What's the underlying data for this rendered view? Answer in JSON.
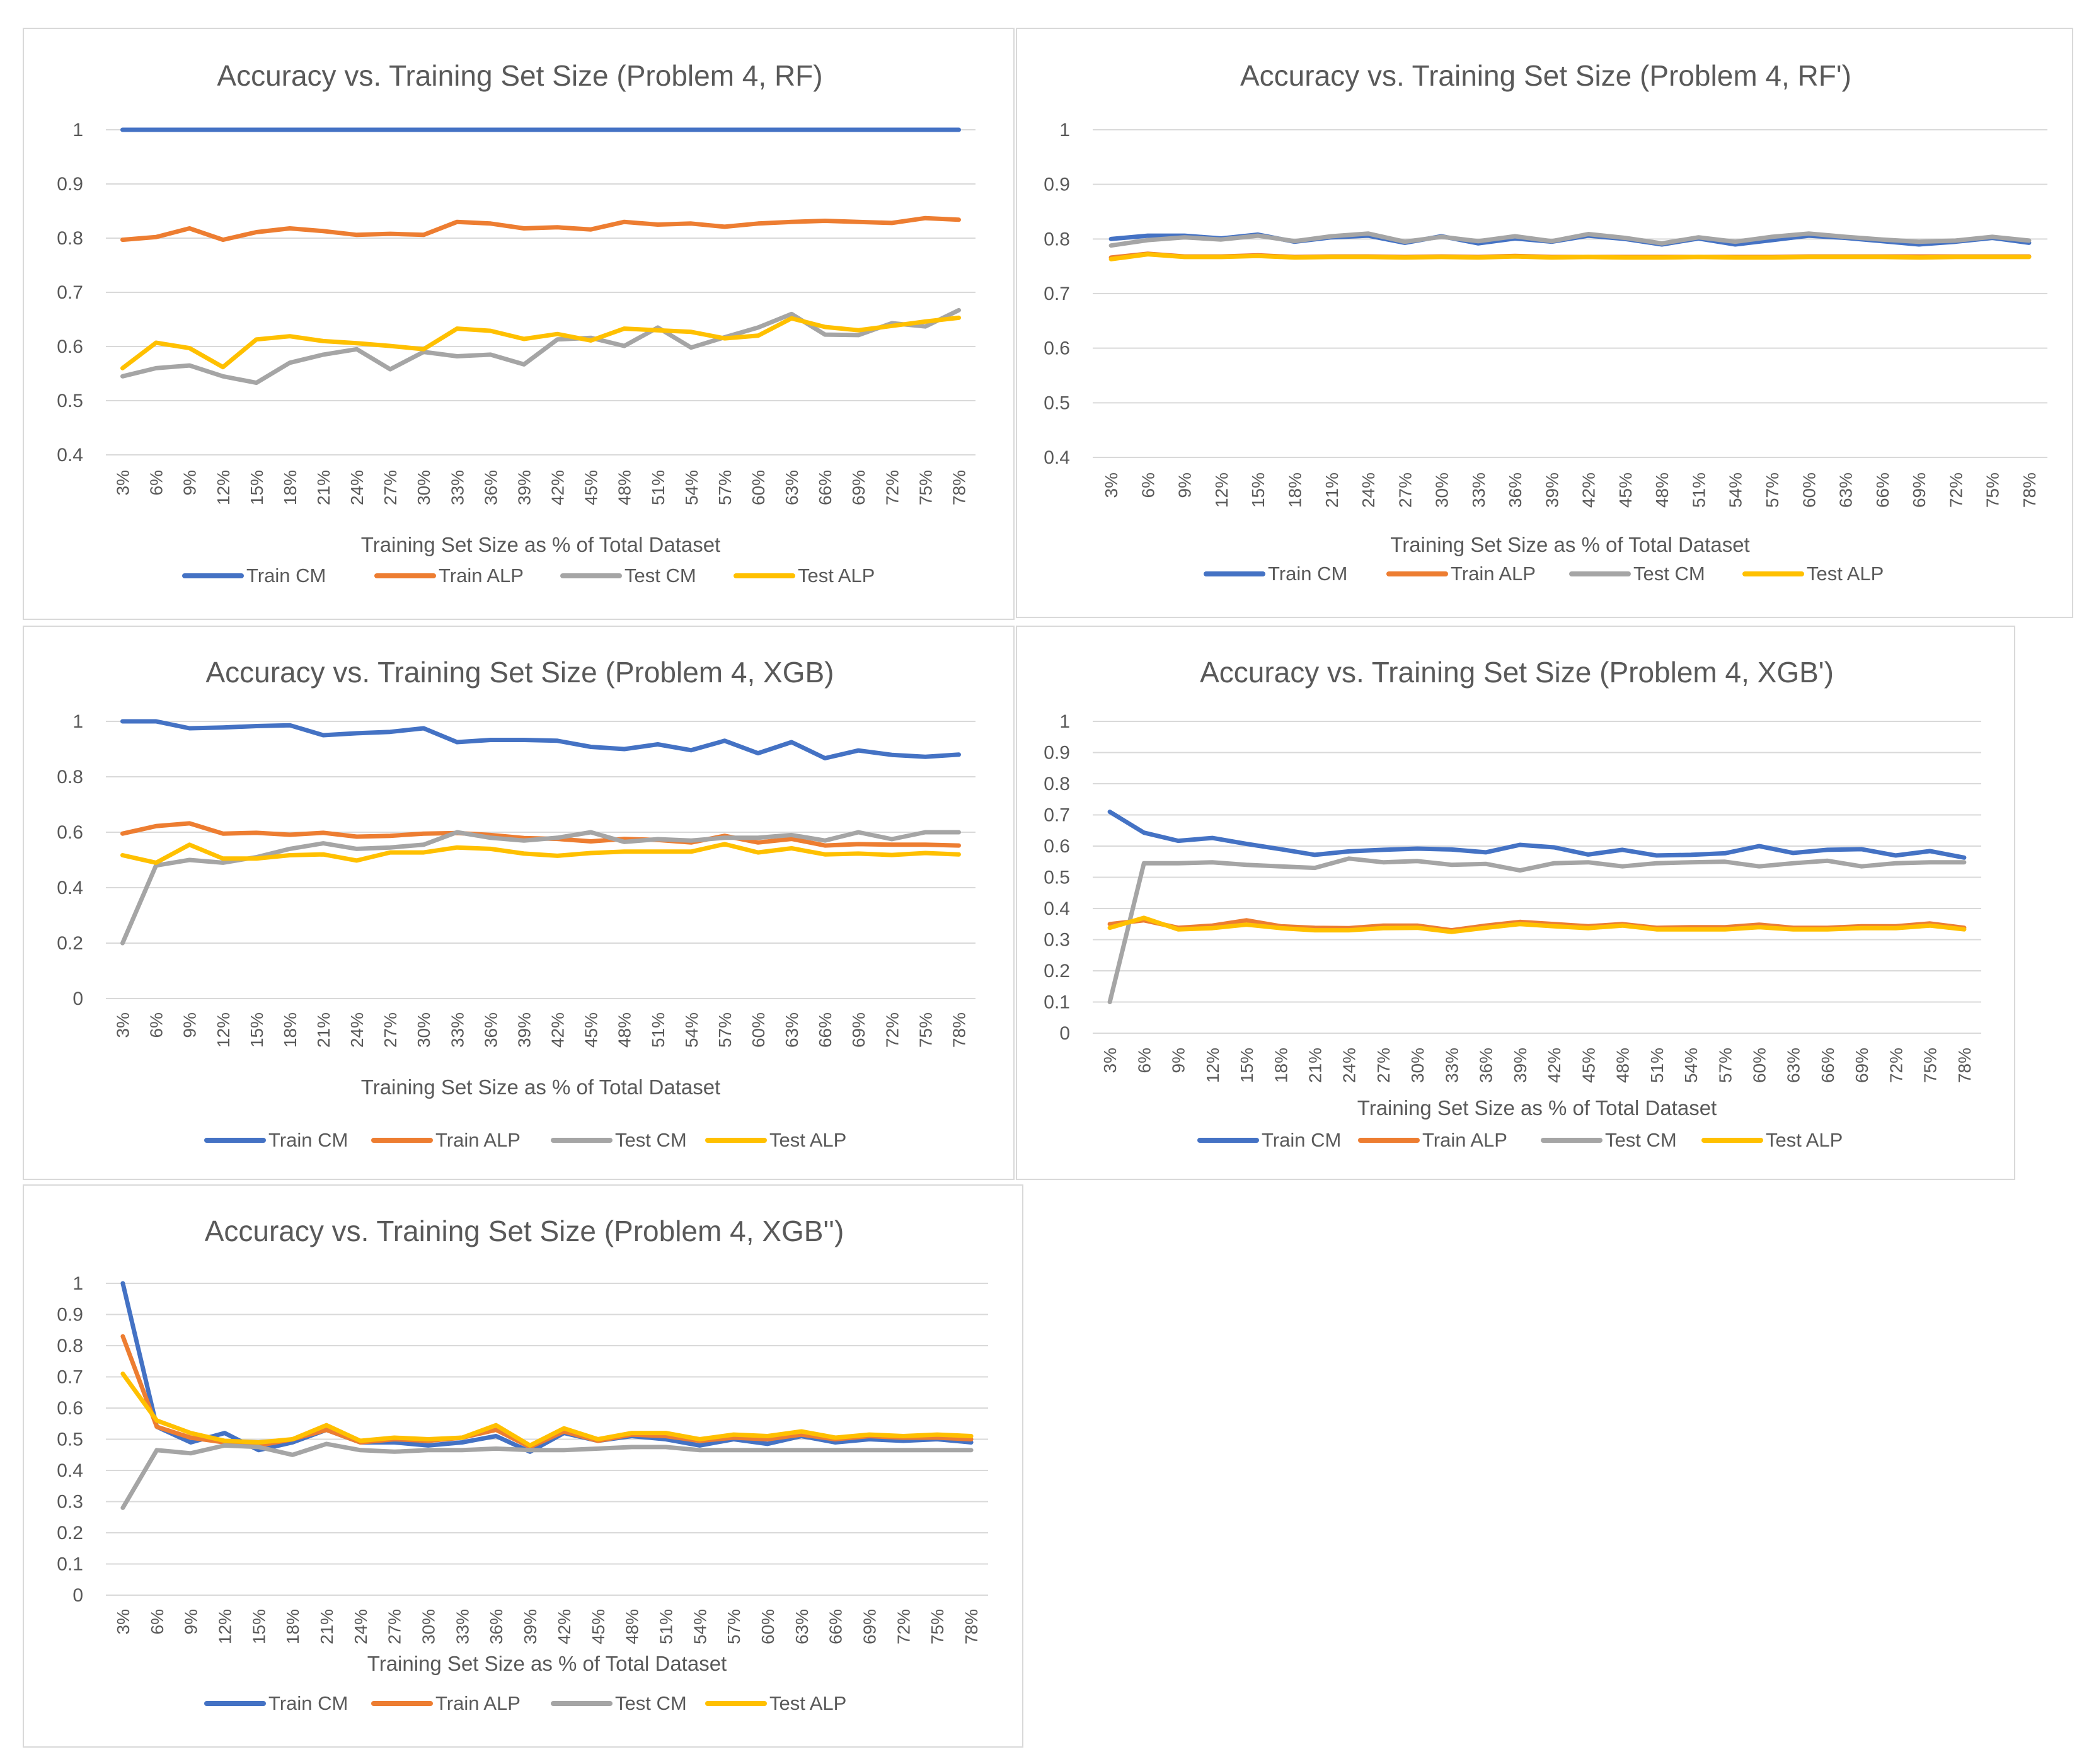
{
  "x_categories": [
    "3%",
    "6%",
    "9%",
    "12%",
    "15%",
    "18%",
    "21%",
    "24%",
    "27%",
    "30%",
    "33%",
    "36%",
    "39%",
    "42%",
    "45%",
    "48%",
    "51%",
    "54%",
    "57%",
    "60%",
    "63%",
    "66%",
    "69%",
    "72%",
    "75%",
    "78%"
  ],
  "legend": [
    "Train CM",
    "Train ALP",
    "Test CM",
    "Test ALP"
  ],
  "colors": {
    "Train CM": "#4472C4",
    "Train ALP": "#ED7D31",
    "Test CM": "#A5A5A5",
    "Test ALP": "#FFC000"
  },
  "chart_data": [
    {
      "type": "line",
      "title": "Accuracy vs. Training Set Size (Problem 4, RF)",
      "xlabel": "Training Set Size as % of Total Dataset",
      "ylabel": "",
      "ylim": [
        0.4,
        1.0
      ],
      "yticks": [
        0.4,
        0.5,
        0.6,
        0.7,
        0.8,
        0.9,
        1
      ],
      "ytick_labels": [
        "0.4",
        "0.5",
        "0.6",
        "0.7",
        "0.8",
        "0.9",
        "1"
      ],
      "series": [
        {
          "name": "Train CM",
          "values": [
            1,
            1,
            1,
            1,
            1,
            1,
            1,
            1,
            1,
            1,
            1,
            1,
            1,
            1,
            1,
            1,
            1,
            1,
            1,
            1,
            1,
            1,
            1,
            1,
            1,
            1
          ]
        },
        {
          "name": "Train ALP",
          "values": [
            0.797,
            0.802,
            0.818,
            0.797,
            0.811,
            0.818,
            0.813,
            0.806,
            0.808,
            0.806,
            0.83,
            0.827,
            0.818,
            0.82,
            0.816,
            0.83,
            0.825,
            0.827,
            0.821,
            0.827,
            0.83,
            0.832,
            0.83,
            0.828,
            0.837,
            0.834
          ]
        },
        {
          "name": "Test CM",
          "values": [
            0.545,
            0.56,
            0.565,
            0.545,
            0.533,
            0.57,
            0.585,
            0.595,
            0.558,
            0.59,
            0.582,
            0.585,
            0.567,
            0.613,
            0.616,
            0.601,
            0.635,
            0.598,
            0.617,
            0.635,
            0.66,
            0.622,
            0.621,
            0.643,
            0.637,
            0.667
          ]
        },
        {
          "name": "Test ALP",
          "values": [
            0.56,
            0.607,
            0.597,
            0.562,
            0.613,
            0.619,
            0.61,
            0.606,
            0.601,
            0.595,
            0.633,
            0.629,
            0.614,
            0.623,
            0.611,
            0.633,
            0.63,
            0.627,
            0.615,
            0.62,
            0.652,
            0.636,
            0.63,
            0.638,
            0.646,
            0.653
          ]
        }
      ]
    },
    {
      "type": "line",
      "title": "Accuracy vs. Training Set Size (Problem 4, RF')",
      "xlabel": "Training Set Size as % of Total Dataset",
      "ylabel": "",
      "ylim": [
        0.4,
        1.0
      ],
      "yticks": [
        0.4,
        0.5,
        0.6,
        0.7,
        0.8,
        0.9,
        1
      ],
      "ytick_labels": [
        "0.4",
        "0.5",
        "0.6",
        "0.7",
        "0.8",
        "0.9",
        "1"
      ],
      "series": [
        {
          "name": "Train CM",
          "values": [
            0.8,
            0.806,
            0.806,
            0.801,
            0.808,
            0.795,
            0.803,
            0.806,
            0.793,
            0.805,
            0.792,
            0.801,
            0.795,
            0.806,
            0.8,
            0.79,
            0.801,
            0.79,
            0.798,
            0.806,
            0.802,
            0.796,
            0.79,
            0.795,
            0.802,
            0.793
          ]
        },
        {
          "name": "Train ALP",
          "values": [
            0.766,
            0.773,
            0.768,
            0.768,
            0.77,
            0.767,
            0.768,
            0.768,
            0.767,
            0.768,
            0.767,
            0.769,
            0.767,
            0.767,
            0.767,
            0.767,
            0.767,
            0.767,
            0.767,
            0.768,
            0.768,
            0.768,
            0.768,
            0.768,
            0.768,
            0.768
          ]
        },
        {
          "name": "Test CM",
          "values": [
            0.788,
            0.798,
            0.803,
            0.799,
            0.806,
            0.796,
            0.805,
            0.81,
            0.795,
            0.804,
            0.796,
            0.805,
            0.796,
            0.809,
            0.802,
            0.792,
            0.803,
            0.795,
            0.804,
            0.81,
            0.804,
            0.799,
            0.795,
            0.797,
            0.804,
            0.797
          ]
        },
        {
          "name": "Test ALP",
          "values": [
            0.763,
            0.772,
            0.767,
            0.767,
            0.769,
            0.766,
            0.767,
            0.767,
            0.766,
            0.767,
            0.766,
            0.768,
            0.766,
            0.767,
            0.766,
            0.766,
            0.767,
            0.766,
            0.766,
            0.767,
            0.767,
            0.767,
            0.766,
            0.767,
            0.767,
            0.767
          ]
        }
      ]
    },
    {
      "type": "line",
      "title": "Accuracy vs. Training Set Size (Problem 4, XGB)",
      "xlabel": "Training Set Size as % of Total Dataset",
      "ylabel": "",
      "ylim": [
        0,
        1.0
      ],
      "yticks": [
        0,
        0.2,
        0.4,
        0.6,
        0.8,
        1
      ],
      "ytick_labels": [
        "0",
        "0.2",
        "0.4",
        "0.6",
        "0.8",
        "1"
      ],
      "series": [
        {
          "name": "Train CM",
          "values": [
            1.0,
            1.0,
            0.975,
            0.978,
            0.983,
            0.986,
            0.95,
            0.957,
            0.962,
            0.975,
            0.925,
            0.933,
            0.933,
            0.93,
            0.908,
            0.9,
            0.917,
            0.896,
            0.93,
            0.885,
            0.925,
            0.867,
            0.895,
            0.879,
            0.872,
            0.88
          ]
        },
        {
          "name": "Train ALP",
          "values": [
            0.595,
            0.622,
            0.632,
            0.595,
            0.598,
            0.591,
            0.598,
            0.584,
            0.587,
            0.595,
            0.597,
            0.59,
            0.579,
            0.576,
            0.567,
            0.576,
            0.572,
            0.563,
            0.587,
            0.563,
            0.576,
            0.552,
            0.557,
            0.555,
            0.555,
            0.552
          ]
        },
        {
          "name": "Test CM",
          "values": [
            0.2,
            0.48,
            0.5,
            0.49,
            0.51,
            0.54,
            0.56,
            0.54,
            0.545,
            0.555,
            0.6,
            0.58,
            0.57,
            0.58,
            0.6,
            0.565,
            0.575,
            0.57,
            0.58,
            0.58,
            0.59,
            0.57,
            0.6,
            0.575,
            0.6,
            0.6
          ]
        },
        {
          "name": "Test ALP",
          "values": [
            0.517,
            0.49,
            0.555,
            0.505,
            0.505,
            0.517,
            0.52,
            0.498,
            0.527,
            0.527,
            0.545,
            0.54,
            0.523,
            0.515,
            0.525,
            0.53,
            0.53,
            0.53,
            0.557,
            0.527,
            0.542,
            0.52,
            0.523,
            0.518,
            0.525,
            0.52
          ]
        }
      ]
    },
    {
      "type": "line",
      "title": "Accuracy vs. Training Set Size (Problem 4, XGB')",
      "xlabel": "Training Set Size as % of Total Dataset",
      "ylabel": "",
      "ylim": [
        0,
        1.0
      ],
      "yticks": [
        0,
        0.1,
        0.2,
        0.3,
        0.4,
        0.5,
        0.6,
        0.7,
        0.8,
        0.9,
        1
      ],
      "ytick_labels": [
        "0",
        "0.1",
        "0.2",
        "0.3",
        "0.4",
        "0.5",
        "0.6",
        "0.7",
        "0.8",
        "0.9",
        "1"
      ],
      "series": [
        {
          "name": "Train CM",
          "values": [
            0.71,
            0.643,
            0.617,
            0.626,
            0.607,
            0.59,
            0.572,
            0.583,
            0.588,
            0.592,
            0.589,
            0.58,
            0.604,
            0.596,
            0.573,
            0.588,
            0.57,
            0.572,
            0.577,
            0.6,
            0.578,
            0.588,
            0.59,
            0.57,
            0.584,
            0.563
          ]
        },
        {
          "name": "Train ALP",
          "values": [
            0.35,
            0.362,
            0.338,
            0.345,
            0.362,
            0.343,
            0.338,
            0.337,
            0.345,
            0.345,
            0.33,
            0.345,
            0.357,
            0.35,
            0.343,
            0.35,
            0.338,
            0.34,
            0.34,
            0.348,
            0.338,
            0.338,
            0.343,
            0.343,
            0.352,
            0.338
          ]
        },
        {
          "name": "Test CM",
          "values": [
            0.1,
            0.545,
            0.545,
            0.548,
            0.54,
            0.535,
            0.53,
            0.56,
            0.548,
            0.552,
            0.54,
            0.543,
            0.522,
            0.545,
            0.548,
            0.535,
            0.545,
            0.548,
            0.55,
            0.535,
            0.545,
            0.553,
            0.535,
            0.545,
            0.548,
            0.548
          ]
        },
        {
          "name": "Test ALP",
          "values": [
            0.338,
            0.37,
            0.333,
            0.337,
            0.348,
            0.337,
            0.33,
            0.33,
            0.337,
            0.338,
            0.325,
            0.338,
            0.35,
            0.343,
            0.337,
            0.345,
            0.333,
            0.333,
            0.333,
            0.34,
            0.333,
            0.333,
            0.337,
            0.337,
            0.345,
            0.333
          ]
        }
      ]
    },
    {
      "type": "line",
      "title": "Accuracy vs. Training Set Size (Problem 4, XGB'')",
      "xlabel": "Training Set Size as % of Total Dataset",
      "ylabel": "",
      "ylim": [
        0,
        1.0
      ],
      "yticks": [
        0,
        0.1,
        0.2,
        0.3,
        0.4,
        0.5,
        0.6,
        0.7,
        0.8,
        0.9,
        1
      ],
      "ytick_labels": [
        "0",
        "0.1",
        "0.2",
        "0.3",
        "0.4",
        "0.5",
        "0.6",
        "0.7",
        "0.8",
        "0.9",
        "1"
      ],
      "series": [
        {
          "name": "Train CM",
          "values": [
            1.0,
            0.54,
            0.49,
            0.52,
            0.465,
            0.49,
            0.53,
            0.49,
            0.49,
            0.48,
            0.49,
            0.51,
            0.46,
            0.52,
            0.495,
            0.51,
            0.5,
            0.48,
            0.5,
            0.485,
            0.51,
            0.49,
            0.5,
            0.495,
            0.5,
            0.49
          ]
        },
        {
          "name": "Train ALP",
          "values": [
            0.83,
            0.54,
            0.505,
            0.49,
            0.48,
            0.5,
            0.53,
            0.49,
            0.5,
            0.495,
            0.505,
            0.53,
            0.475,
            0.525,
            0.495,
            0.515,
            0.51,
            0.495,
            0.505,
            0.5,
            0.515,
            0.5,
            0.51,
            0.505,
            0.505,
            0.5
          ]
        },
        {
          "name": "Test CM",
          "values": [
            0.28,
            0.465,
            0.455,
            0.48,
            0.475,
            0.45,
            0.485,
            0.465,
            0.46,
            0.465,
            0.465,
            0.47,
            0.465,
            0.465,
            0.47,
            0.475,
            0.475,
            0.465,
            0.465,
            0.465,
            0.465,
            0.465,
            0.465,
            0.465,
            0.465,
            0.465
          ]
        },
        {
          "name": "Test ALP",
          "values": [
            0.71,
            0.56,
            0.52,
            0.495,
            0.49,
            0.5,
            0.545,
            0.495,
            0.505,
            0.5,
            0.505,
            0.545,
            0.48,
            0.535,
            0.5,
            0.52,
            0.52,
            0.5,
            0.515,
            0.51,
            0.525,
            0.505,
            0.515,
            0.51,
            0.515,
            0.51
          ]
        }
      ]
    }
  ]
}
